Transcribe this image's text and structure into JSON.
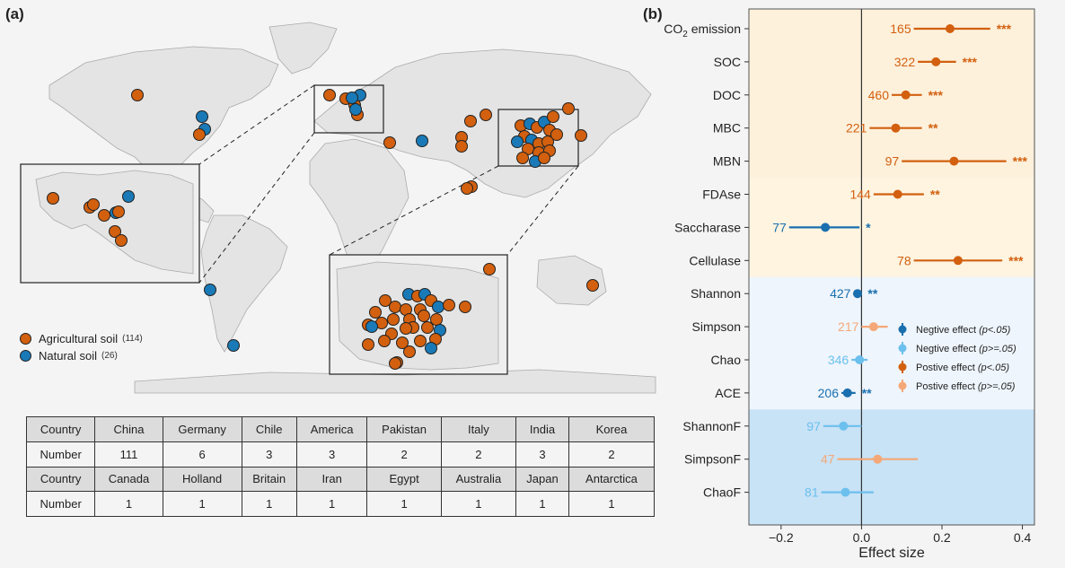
{
  "panel_a": {
    "label": "(a)",
    "legend": [
      {
        "label": "Agricultural soil",
        "count": "(114)",
        "color": "#d2600f"
      },
      {
        "label": "Natural soil",
        "count": "(26)",
        "color": "#1a7ab8"
      }
    ],
    "table": [
      {
        "header": "Country",
        "values": [
          "China",
          "Germany",
          "Chile",
          "America",
          "Pakistan",
          "Italy",
          "India",
          "Korea"
        ]
      },
      {
        "header": "Number",
        "values": [
          "111",
          "6",
          "3",
          "3",
          "2",
          "2",
          "3",
          "2"
        ]
      },
      {
        "header": "Country",
        "values": [
          "Canada",
          "Holland",
          "Britain",
          "Iran",
          "Egypt",
          "Australia",
          "Japan",
          "Antarctica"
        ]
      },
      {
        "header": "Number",
        "values": [
          "1",
          "1",
          "1",
          "1",
          "1",
          "1",
          "1",
          "1"
        ]
      }
    ]
  },
  "panel_b": {
    "label": "(b)",
    "xlabel": "Effect size",
    "legend": [
      {
        "label": "Negtive effect",
        "cond": "(p<.05)",
        "color": "#1a6fae"
      },
      {
        "label": "Negtive effect",
        "cond": "(p>=.05)",
        "color": "#6cc0ee"
      },
      {
        "label": "Postive effect",
        "cond": "(p<.05)",
        "color": "#d2600f"
      },
      {
        "label": "Postive effect",
        "cond": "(p>=.05)",
        "color": "#f5a877"
      }
    ]
  },
  "chart_data": {
    "type": "forest",
    "xlabel": "Effect size",
    "xlim": [
      -0.28,
      0.43
    ],
    "xticks": [
      -0.2,
      0.0,
      0.2,
      0.4
    ],
    "xtick_labels": [
      "−0.2",
      "0.0",
      "0.2",
      "0.4"
    ],
    "rows": [
      {
        "label": "CO2 emission",
        "n": "165",
        "effect": 0.22,
        "lo": 0.13,
        "hi": 0.32,
        "sig": "***",
        "group": "pos_sig"
      },
      {
        "label": "SOC",
        "n": "322",
        "effect": 0.185,
        "lo": 0.14,
        "hi": 0.235,
        "sig": "***",
        "group": "pos_sig"
      },
      {
        "label": "DOC",
        "n": "460",
        "effect": 0.11,
        "lo": 0.075,
        "hi": 0.15,
        "sig": "***",
        "group": "pos_sig"
      },
      {
        "label": "MBC",
        "n": "221",
        "effect": 0.085,
        "lo": 0.02,
        "hi": 0.15,
        "sig": "**",
        "group": "pos_sig"
      },
      {
        "label": "MBN",
        "n": "97",
        "effect": 0.23,
        "lo": 0.1,
        "hi": 0.36,
        "sig": "***",
        "group": "pos_sig"
      },
      {
        "label": "FDAse",
        "n": "144",
        "effect": 0.09,
        "lo": 0.03,
        "hi": 0.155,
        "sig": "**",
        "group": "pos_sig"
      },
      {
        "label": "Saccharase",
        "n": "77",
        "effect": -0.09,
        "lo": -0.18,
        "hi": -0.005,
        "sig": "*",
        "group": "neg_sig"
      },
      {
        "label": "Cellulase",
        "n": "78",
        "effect": 0.24,
        "lo": 0.13,
        "hi": 0.35,
        "sig": "***",
        "group": "pos_sig"
      },
      {
        "label": "Shannon",
        "n": "427",
        "effect": -0.01,
        "lo": -0.02,
        "hi": 0.0,
        "sig": "**",
        "group": "neg_sig"
      },
      {
        "label": "Simpson",
        "n": "217",
        "effect": 0.03,
        "lo": 0.0,
        "hi": 0.065,
        "sig": "",
        "group": "pos_ns"
      },
      {
        "label": "Chao",
        "n": "346",
        "effect": -0.005,
        "lo": -0.025,
        "hi": 0.015,
        "sig": "",
        "group": "neg_ns"
      },
      {
        "label": "ACE",
        "n": "206",
        "effect": -0.035,
        "lo": -0.05,
        "hi": -0.015,
        "sig": "**",
        "group": "neg_sig"
      },
      {
        "label": "ShannonF",
        "n": "97",
        "effect": -0.045,
        "lo": -0.095,
        "hi": 0.0,
        "sig": "",
        "group": "neg_ns"
      },
      {
        "label": "SimpsonF",
        "n": "47",
        "effect": 0.04,
        "lo": -0.06,
        "hi": 0.14,
        "sig": "",
        "group": "pos_ns"
      },
      {
        "label": "ChaoF",
        "n": "81",
        "effect": -0.04,
        "lo": -0.1,
        "hi": 0.03,
        "sig": "",
        "group": "neg_ns"
      }
    ],
    "group_colors": {
      "pos_sig": "#d2600f",
      "pos_ns": "#f5a877",
      "neg_sig": "#1a6fae",
      "neg_ns": "#6cc0ee"
    },
    "band_colors": [
      "#fdf1dc",
      "#fef4e0",
      "#eef5fc",
      "#c8e2f6"
    ]
  }
}
